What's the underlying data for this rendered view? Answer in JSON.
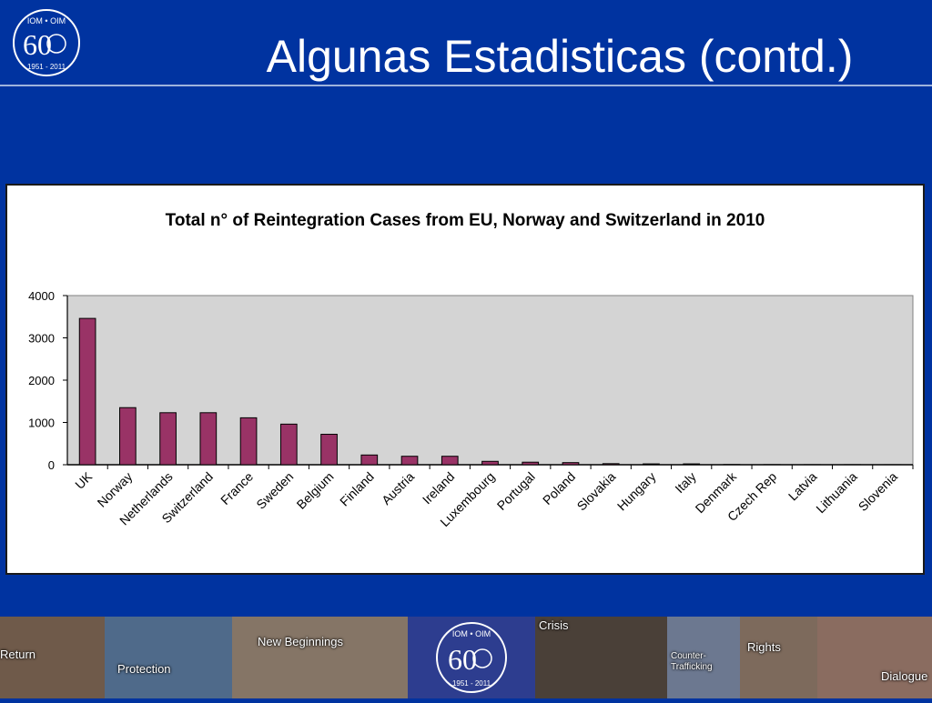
{
  "slide": {
    "title": "Algunas Estadisticas (contd.)",
    "logo": {
      "top_text": "IOM • OIM",
      "number": "60",
      "years": "1951 - 2011"
    }
  },
  "chart_data": {
    "type": "bar",
    "title": "Total n° of Reintegration Cases  from EU, Norway and Switzerland in 2010",
    "categories": [
      "UK",
      "Norway",
      "Netherlands",
      "Switzerland",
      "France",
      "Sweden",
      "Belgium",
      "Finland",
      "Austria",
      "Ireland",
      "Luxembourg",
      "Portugal",
      "Poland",
      "Slovakia",
      "Hungary",
      "Italy",
      "Denmark",
      "Czech Rep",
      "Latvia",
      "Lithuania",
      "Slovenia"
    ],
    "values": [
      3460,
      1350,
      1230,
      1230,
      1110,
      960,
      720,
      230,
      200,
      200,
      80,
      60,
      50,
      25,
      20,
      20,
      5,
      3,
      2,
      2,
      1
    ],
    "y_ticks": [
      "0",
      "1000",
      "2000",
      "3000",
      "4000"
    ],
    "ylim": [
      0,
      4000
    ],
    "xlabel": "",
    "ylabel": "",
    "grid": false,
    "colors": {
      "bar": "#993366",
      "plot_background": "#d4d4d4"
    }
  },
  "footer": {
    "labels": [
      "Return",
      "Protection",
      "New Beginnings",
      "Crisis",
      "Counter-\nTrafficking",
      "Rights",
      "Dialogue"
    ]
  }
}
